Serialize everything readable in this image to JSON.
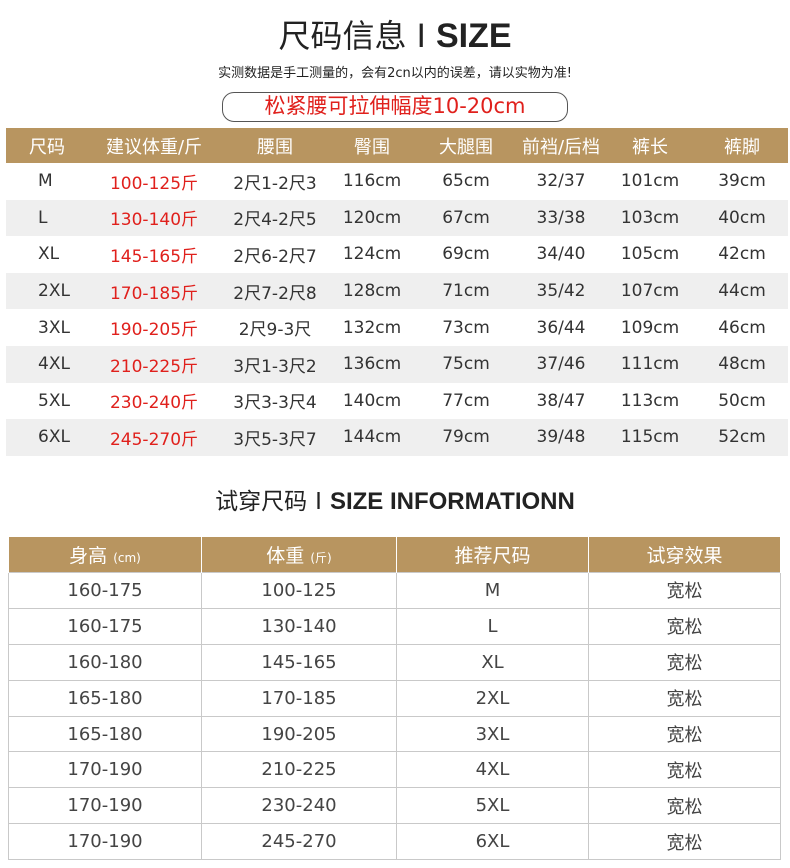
{
  "header": {
    "title_cn": "尺码信息",
    "title_sep": "I",
    "title_en": "SIZE",
    "note": "实测数据是手工测量的，会有2cn以内的误差，请以实物为准!",
    "stretch_note": "松紧腰可拉伸幅度10-20cm"
  },
  "size_table": {
    "headers": [
      "尺码",
      "建议体重/斤",
      "腰围",
      "臀围",
      "大腿围",
      "前裆/后档",
      "裤长",
      "裤脚"
    ],
    "rows": [
      [
        "M",
        "100-125斤",
        "2尺1-2尺3",
        "116cm",
        "65cm",
        "32/37",
        "101cm",
        "39cm"
      ],
      [
        "L",
        "130-140斤",
        "2尺4-2尺5",
        "120cm",
        "67cm",
        "33/38",
        "103cm",
        "40cm"
      ],
      [
        "XL",
        "145-165斤",
        "2尺6-2尺7",
        "124cm",
        "69cm",
        "34/40",
        "105cm",
        "42cm"
      ],
      [
        "2XL",
        "170-185斤",
        "2尺7-2尺8",
        "128cm",
        "71cm",
        "35/42",
        "107cm",
        "44cm"
      ],
      [
        "3XL",
        "190-205斤",
        "2尺9-3尺",
        "132cm",
        "73cm",
        "36/44",
        "109cm",
        "46cm"
      ],
      [
        "4XL",
        "210-225斤",
        "3尺1-3尺2",
        "136cm",
        "75cm",
        "37/46",
        "111cm",
        "48cm"
      ],
      [
        "5XL",
        "230-240斤",
        "3尺3-3尺4",
        "140cm",
        "77cm",
        "38/47",
        "113cm",
        "50cm"
      ],
      [
        "6XL",
        "245-270斤",
        "3尺5-3尺7",
        "144cm",
        "79cm",
        "39/48",
        "115cm",
        "52cm"
      ]
    ]
  },
  "try_section": {
    "title_cn": "试穿尺码",
    "title_sep": "I",
    "title_en": "SIZE INFORMATIONN"
  },
  "try_table": {
    "headers": [
      {
        "label": "身高",
        "unit": "(cm)"
      },
      {
        "label": "体重",
        "unit": "(斤)"
      },
      {
        "label": "推荐尺码",
        "unit": ""
      },
      {
        "label": "试穿效果",
        "unit": ""
      }
    ],
    "rows": [
      [
        "160-175",
        "100-125",
        "M",
        "宽松"
      ],
      [
        "160-175",
        "130-140",
        "L",
        "宽松"
      ],
      [
        "160-180",
        "145-165",
        "XL",
        "宽松"
      ],
      [
        "165-180",
        "170-185",
        "2XL",
        "宽松"
      ],
      [
        "165-180",
        "190-205",
        "3XL",
        "宽松"
      ],
      [
        "170-190",
        "210-225",
        "4XL",
        "宽松"
      ],
      [
        "170-190",
        "230-240",
        "5XL",
        "宽松"
      ],
      [
        "170-190",
        "245-270",
        "6XL",
        "宽松"
      ]
    ]
  },
  "colors": {
    "header_bg": "#b89560",
    "accent_red": "#e0201c",
    "alt_row": "#efefef"
  }
}
